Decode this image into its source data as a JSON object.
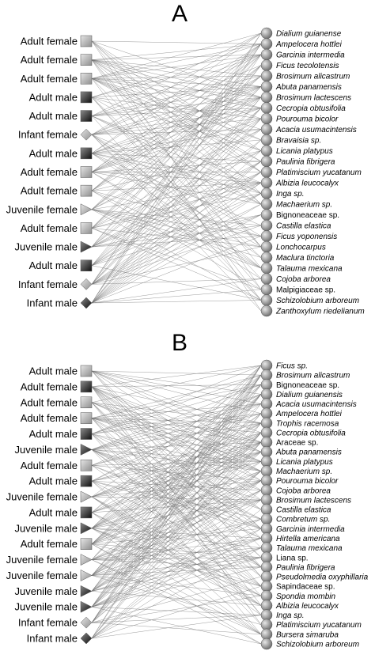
{
  "panels": [
    {
      "letter": "A",
      "monkeys": [
        {
          "label": "Adult female",
          "shape": "square",
          "shade": "light"
        },
        {
          "label": "Adult female",
          "shape": "square",
          "shade": "light"
        },
        {
          "label": "Adult female",
          "shape": "square",
          "shade": "light"
        },
        {
          "label": "Adult male",
          "shape": "square",
          "shade": "dark"
        },
        {
          "label": "Adult male",
          "shape": "square",
          "shade": "dark"
        },
        {
          "label": "Infant female",
          "shape": "diamond",
          "shade": "light"
        },
        {
          "label": "Adult male",
          "shape": "square",
          "shade": "dark"
        },
        {
          "label": "Adult female",
          "shape": "square",
          "shade": "light"
        },
        {
          "label": "Adult female",
          "shape": "square",
          "shade": "light"
        },
        {
          "label": "Juvenile female",
          "shape": "triangle",
          "shade": "light"
        },
        {
          "label": "Adult female",
          "shape": "square",
          "shade": "light"
        },
        {
          "label": "Juvenile male",
          "shape": "triangle",
          "shade": "dark"
        },
        {
          "label": "Adult male",
          "shape": "square",
          "shade": "dark"
        },
        {
          "label": "Infant female",
          "shape": "diamond",
          "shade": "light"
        },
        {
          "label": "Infant male",
          "shape": "diamond",
          "shade": "dark"
        }
      ],
      "plants": [
        {
          "label": "Dialium guianense",
          "italic": true
        },
        {
          "label": "Ampelocera hottlei",
          "italic": true
        },
        {
          "label": "Garcinia intermedia",
          "italic": true
        },
        {
          "label": "Ficus tecolotensis",
          "italic": true
        },
        {
          "label": "Brosimum alicastrum",
          "italic": true
        },
        {
          "label": "Abuta panamensis",
          "italic": true
        },
        {
          "label": "Brosimum lactescens",
          "italic": true
        },
        {
          "label": "Cecropia obtusifolia",
          "italic": true
        },
        {
          "label": "Pourouma bicolor",
          "italic": true
        },
        {
          "label": "Acacia usumacintensis",
          "italic": true
        },
        {
          "label": "Bravaisia sp.",
          "italic": true
        },
        {
          "label": "Licania platypus",
          "italic": true
        },
        {
          "label": "Paulinia fibrigera",
          "italic": true
        },
        {
          "label": "Platimiscium yucatanum",
          "italic": true
        },
        {
          "label": "Albizia leucocalyx",
          "italic": true
        },
        {
          "label": "Inga sp.",
          "italic": true
        },
        {
          "label": "Machaerium sp.",
          "italic": true
        },
        {
          "label": "Bignoneaceae sp.",
          "italic": false
        },
        {
          "label": "Castilla elastica",
          "italic": true
        },
        {
          "label": "Ficus yoponensis",
          "italic": true
        },
        {
          "label": "Lonchocarpus",
          "italic": true
        },
        {
          "label": "Maclura tinctoria",
          "italic": true
        },
        {
          "label": "Talauma mexicana",
          "italic": true
        },
        {
          "label": "Cojoba arborea",
          "italic": true
        },
        {
          "label": "Malpigiaceae sp.",
          "italic": false
        },
        {
          "label": "Schizolobium arboreum",
          "italic": true
        },
        {
          "label": "Zanthoxylum riedelianum",
          "italic": true
        }
      ]
    },
    {
      "letter": "B",
      "monkeys": [
        {
          "label": "Adult male",
          "shape": "square",
          "shade": "light"
        },
        {
          "label": "Adult female",
          "shape": "square",
          "shade": "dark"
        },
        {
          "label": "Adult female",
          "shape": "square",
          "shade": "light"
        },
        {
          "label": "Adult female",
          "shape": "square",
          "shade": "light"
        },
        {
          "label": "Adult male",
          "shape": "square",
          "shade": "dark"
        },
        {
          "label": "Juvenile male",
          "shape": "triangle",
          "shade": "dark"
        },
        {
          "label": "Adult female",
          "shape": "square",
          "shade": "light"
        },
        {
          "label": "Adult male",
          "shape": "square",
          "shade": "dark"
        },
        {
          "label": "Juvenile female",
          "shape": "triangle",
          "shade": "light"
        },
        {
          "label": "Adult male",
          "shape": "square",
          "shade": "dark"
        },
        {
          "label": "Juvenile male",
          "shape": "triangle",
          "shade": "dark"
        },
        {
          "label": "Adult female",
          "shape": "square",
          "shade": "light"
        },
        {
          "label": "Juvenile female",
          "shape": "triangle",
          "shade": "light"
        },
        {
          "label": "Juvenile female",
          "shape": "triangle",
          "shade": "light"
        },
        {
          "label": "Juvenile male",
          "shape": "triangle",
          "shade": "dark"
        },
        {
          "label": "Juvenile male",
          "shape": "triangle",
          "shade": "dark"
        },
        {
          "label": "Infant female",
          "shape": "diamond",
          "shade": "light"
        },
        {
          "label": "Infant male",
          "shape": "diamond",
          "shade": "dark"
        }
      ],
      "plants": [
        {
          "label": "Ficus sp.",
          "italic": true
        },
        {
          "label": "Brosimum alicastrum",
          "italic": true
        },
        {
          "label": "Bignoneaceae sp.",
          "italic": false
        },
        {
          "label": "Dialium guianensis",
          "italic": true
        },
        {
          "label": "Acacia usumacintensis",
          "italic": true
        },
        {
          "label": "Ampelocera hottlei",
          "italic": true
        },
        {
          "label": "Trophis racemosa",
          "italic": true
        },
        {
          "label": "Cecropia obtusifolia",
          "italic": true
        },
        {
          "label": "Araceae sp.",
          "italic": false
        },
        {
          "label": "Abuta panamensis",
          "italic": true
        },
        {
          "label": "Licania platypus",
          "italic": true
        },
        {
          "label": "Machaerium sp.",
          "italic": true
        },
        {
          "label": "Pourouma bicolor",
          "italic": true
        },
        {
          "label": "Cojoba arborea",
          "italic": true
        },
        {
          "label": "Brosimum lactescens",
          "italic": true
        },
        {
          "label": "Castilla elastica",
          "italic": true
        },
        {
          "label": "Combretum sp.",
          "italic": true
        },
        {
          "label": "Garcinia intermedia",
          "italic": true
        },
        {
          "label": "Hirtella americana",
          "italic": true
        },
        {
          "label": "Talauma mexicana",
          "italic": true
        },
        {
          "label": "Liana sp.",
          "italic": false
        },
        {
          "label": "Paulinia fibrigera",
          "italic": true
        },
        {
          "label": "Pseudolmedia oxyphillaria",
          "italic": true
        },
        {
          "label": "Sapindaceae sp.",
          "italic": false
        },
        {
          "label": "Spondia mombin",
          "italic": true
        },
        {
          "label": "Albizia leucocalyx",
          "italic": true
        },
        {
          "label": "Inga sp.",
          "italic": true
        },
        {
          "label": "Platimiscium yucatanum",
          "italic": true
        },
        {
          "label": "Bursera simaruba",
          "italic": true
        },
        {
          "label": "Schizolobium arboreum",
          "italic": true
        }
      ]
    }
  ],
  "colors": {
    "node_light": "#a8a8a8",
    "node_dark": "#2a2a2a",
    "plant_node": "#8c8c8c",
    "edge": "#6a6a6a"
  }
}
